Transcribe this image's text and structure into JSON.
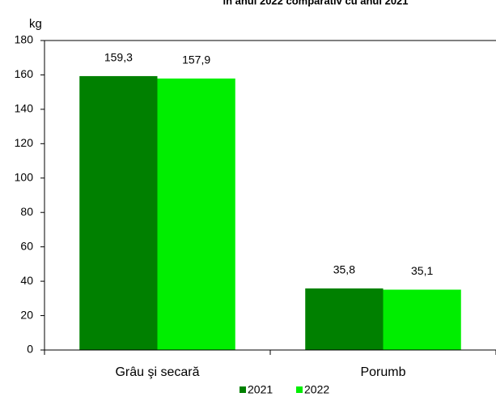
{
  "chart_data": {
    "type": "bar",
    "title": "în anul 2022 comparativ cu anul 2021",
    "y_label": "kg",
    "categories": [
      "Grâu şi secară",
      "Porumb"
    ],
    "series": [
      {
        "name": "2021",
        "color": "#008000",
        "values": [
          159.3,
          35.8
        ],
        "value_labels": [
          "159,3",
          "35,8"
        ]
      },
      {
        "name": "2022",
        "color": "#00ee00",
        "values": [
          157.9,
          35.1
        ],
        "value_labels": [
          "157,9",
          "35,1"
        ]
      }
    ],
    "ylim": [
      0,
      180
    ],
    "yticks": [
      0,
      20,
      40,
      60,
      80,
      100,
      120,
      140,
      160,
      180
    ],
    "grid": false,
    "legend": "bottom"
  }
}
